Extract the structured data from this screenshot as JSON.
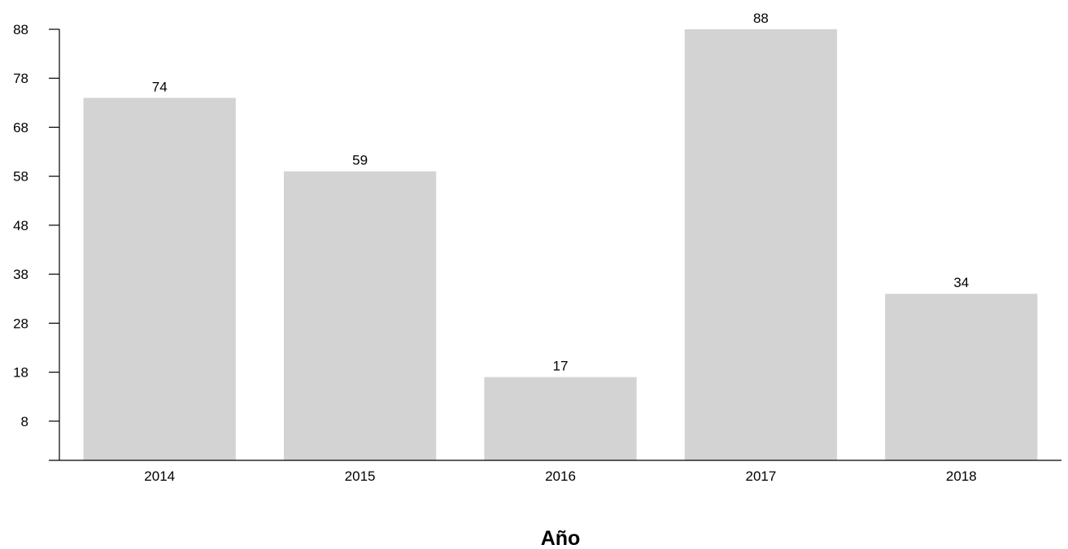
{
  "chart_data": {
    "type": "bar",
    "title": "",
    "xlabel": "Año",
    "ylabel": "",
    "categories": [
      "2014",
      "2015",
      "2016",
      "2017",
      "2018"
    ],
    "values": [
      74,
      59,
      17,
      88,
      34
    ],
    "data_labels": [
      "74",
      "59",
      "17",
      "88",
      "34"
    ],
    "yticks": [
      8,
      18,
      28,
      38,
      48,
      58,
      68,
      78,
      88
    ],
    "ylim": [
      0,
      88
    ],
    "grid": false,
    "legend": "none",
    "bar_color": "#d3d3d3"
  }
}
